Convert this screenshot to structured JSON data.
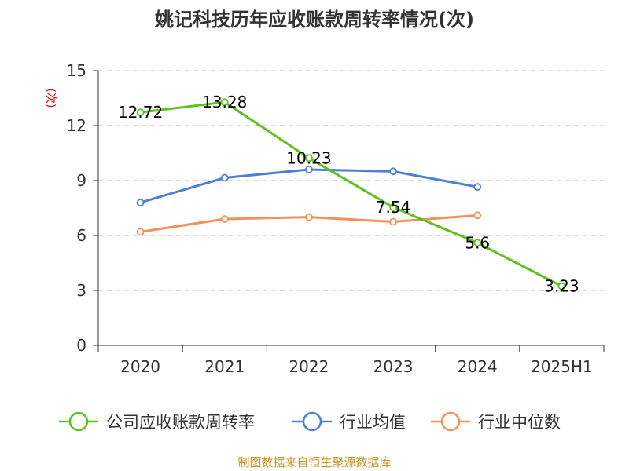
{
  "chart_data": {
    "type": "line",
    "title": "姚记科技历年应收账款周转率情况(次)",
    "ylabel": "(次)",
    "ylim": [
      0,
      15
    ],
    "yticks": [
      0,
      3,
      6,
      9,
      12,
      15
    ],
    "grid": true,
    "legend_position": "bottom",
    "categories": [
      "2020",
      "2021",
      "2022",
      "2023",
      "2024",
      "2025H1"
    ],
    "series": [
      {
        "name": "公司应收账款周转率",
        "color": "#5cc31e",
        "values": [
          12.72,
          13.28,
          10.23,
          7.54,
          5.6,
          3.23
        ],
        "labels": [
          "12.72",
          "13.28",
          "10.23",
          "7.54",
          "5.6",
          "3.23"
        ]
      },
      {
        "name": "行业均值",
        "color": "#4d7fd6",
        "values": [
          7.8,
          9.15,
          9.6,
          9.5,
          8.65,
          null
        ]
      },
      {
        "name": "行业中位数",
        "color": "#f59057",
        "values": [
          6.2,
          6.9,
          7.0,
          6.75,
          7.1,
          null
        ]
      }
    ]
  },
  "footer": {
    "source": "制图数据来自恒生聚源数据库"
  }
}
